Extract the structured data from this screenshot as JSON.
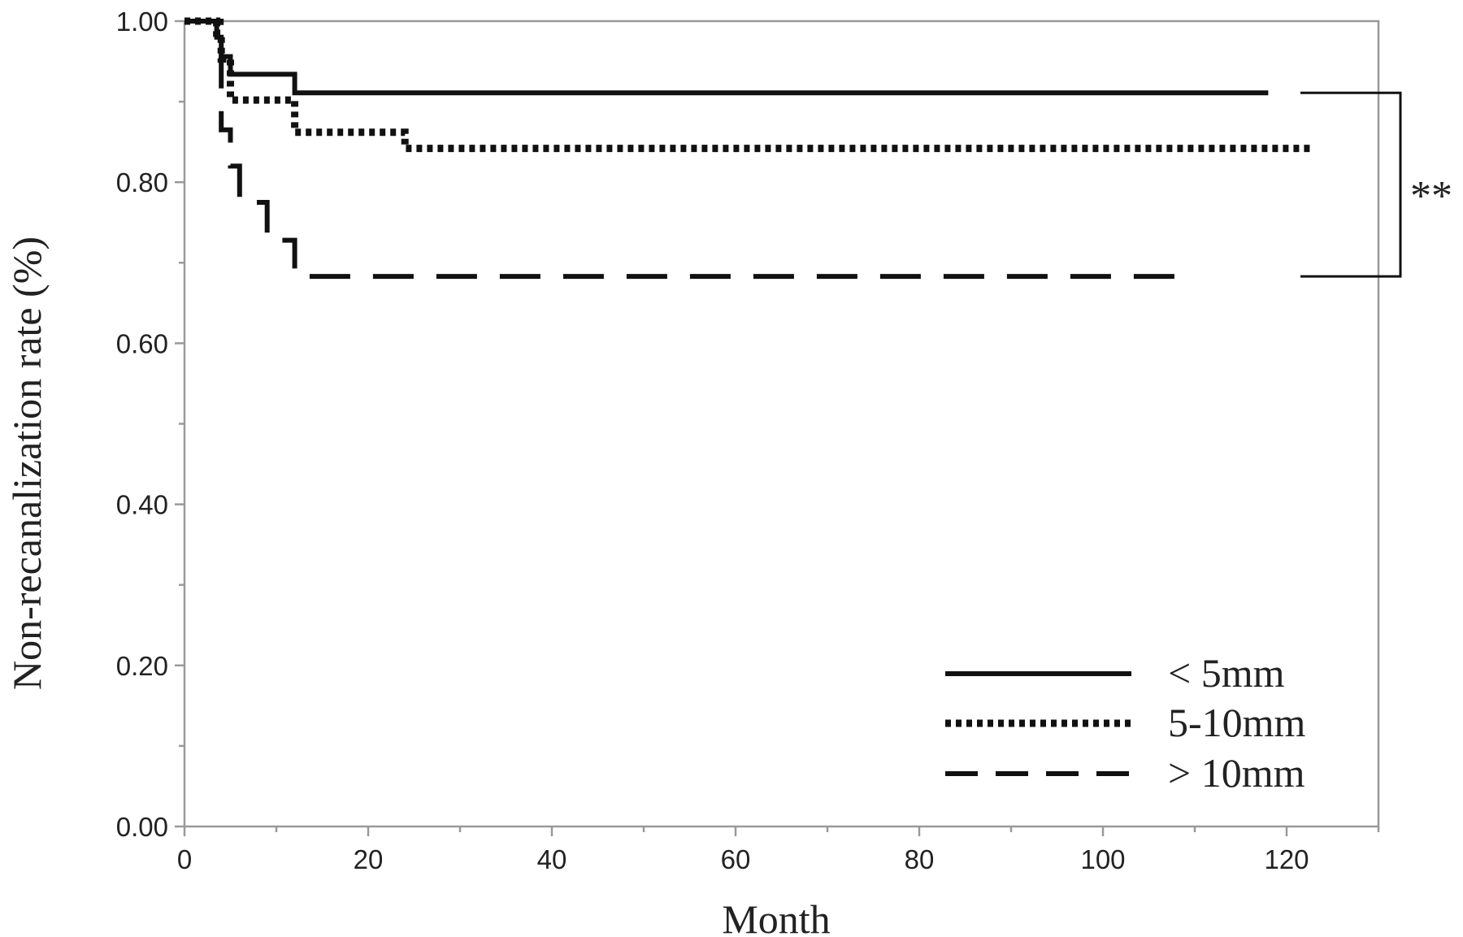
{
  "chart_data": {
    "type": "line",
    "subtype": "kaplan-meier step",
    "xlabel": "Month",
    "ylabel": "Non-recanalization rate (%)",
    "xlim": [
      0,
      130
    ],
    "ylim": [
      0,
      1
    ],
    "xticks": [
      "0",
      "20",
      "40",
      "60",
      "80",
      "100",
      "120"
    ],
    "yticks": [
      "0.00",
      "0.20",
      "0.40",
      "0.60",
      "0.80",
      "1.00"
    ],
    "grid": false,
    "legend_position": "bottom-right",
    "significance_label": "**",
    "series": [
      {
        "name": "< 5mm",
        "style": "solid",
        "x": [
          0,
          3.5,
          3.5,
          4,
          4,
          5,
          5,
          6,
          6,
          12,
          12,
          118
        ],
        "y": [
          1.0,
          1.0,
          0.98,
          0.98,
          0.956,
          0.956,
          0.934,
          0.934,
          0.934,
          0.934,
          0.911,
          0.911
        ]
      },
      {
        "name": "5-10mm",
        "style": "dotted",
        "x": [
          0,
          3.5,
          3.5,
          4,
          4,
          5,
          5,
          12,
          12,
          24,
          24,
          123
        ],
        "y": [
          1.0,
          1.0,
          0.985,
          0.985,
          0.953,
          0.953,
          0.902,
          0.902,
          0.862,
          0.862,
          0.842,
          0.842
        ]
      },
      {
        "name": "> 10mm",
        "style": "dashed",
        "x": [
          0,
          4,
          4,
          5,
          5,
          6,
          6,
          9,
          9,
          12,
          12,
          110
        ],
        "y": [
          1.0,
          1.0,
          0.865,
          0.865,
          0.82,
          0.82,
          0.775,
          0.775,
          0.728,
          0.728,
          0.683,
          0.683
        ]
      }
    ],
    "colors": {
      "axis": "#999999",
      "line": "#111111"
    }
  }
}
